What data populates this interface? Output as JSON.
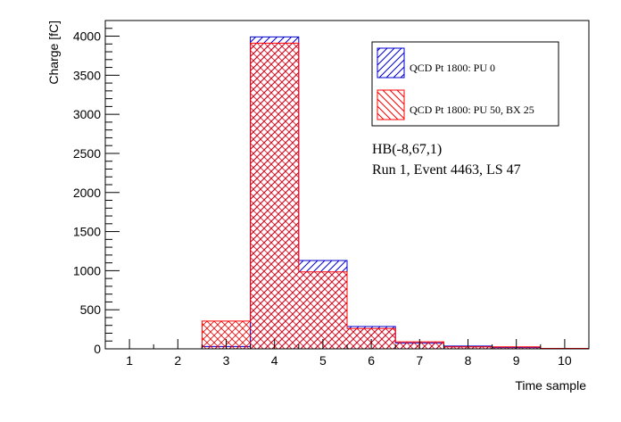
{
  "chart_data": {
    "type": "bar",
    "xlabel": "Time sample",
    "ylabel": "Charge [fC]",
    "xlim": [
      0.5,
      10.5
    ],
    "ylim": [
      0,
      4200
    ],
    "x_ticks": [
      1,
      2,
      3,
      4,
      5,
      6,
      7,
      8,
      9,
      10
    ],
    "y_ticks": [
      0,
      500,
      1000,
      1500,
      2000,
      2500,
      3000,
      3500,
      4000
    ],
    "categories": [
      "1",
      "2",
      "3",
      "4",
      "5",
      "6",
      "7",
      "8",
      "9",
      "10"
    ],
    "series": [
      {
        "name": "QCD Pt 1800: PU 0",
        "color": "#0000cc",
        "hatch": "forward-diagonal",
        "values": [
          0,
          0,
          30,
          3990,
          1130,
          285,
          75,
          35,
          15,
          5
        ]
      },
      {
        "name": "QCD Pt 1800: PU 50, BX 25",
        "color": "#ff0000",
        "hatch": "cross",
        "values": [
          0,
          0,
          355,
          3910,
          985,
          260,
          90,
          25,
          25,
          5
        ]
      }
    ],
    "annotations": [
      "HB(-8,67,1)",
      "Run 1, Event 4463, LS 47"
    ],
    "legend_position": "top-right",
    "grid": false
  }
}
